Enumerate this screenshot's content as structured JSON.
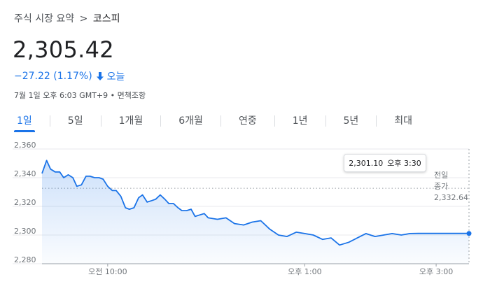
{
  "breadcrumb": {
    "root": "주식 시장 요약",
    "separator": ">",
    "current": "코스피"
  },
  "quote": {
    "price": "2,305.42",
    "change": "−27.22 (1.17%)",
    "period": "오늘",
    "meta": "7월 1일 오후 6:03 GMT+9 • 면책조항",
    "change_color": "#1a73e8"
  },
  "tabs": [
    "1일",
    "5일",
    "1개월",
    "6개월",
    "연중",
    "1년",
    "5년",
    "최대"
  ],
  "active_tab": "1일",
  "tooltip": {
    "value": "2,301.10",
    "time": "오후 3:30"
  },
  "prev_close": {
    "label_line1": "전일",
    "label_line2": "종가",
    "value": "2,332.64"
  },
  "chart_data": {
    "type": "area",
    "ylim": [
      2280,
      2360
    ],
    "yticks": [
      "2,360",
      "2,340",
      "2,320",
      "2,300",
      "2,280"
    ],
    "xticks": [
      "오전 10:00",
      "오후 1:00",
      "오후 3:00"
    ],
    "xtick_positions": [
      10.0,
      13.0,
      15.0
    ],
    "xlim": [
      9.0,
      15.5
    ],
    "reference_line": 2332.64,
    "line_color": "#1a73e8",
    "x": [
      9.0,
      9.07,
      9.13,
      9.2,
      9.27,
      9.33,
      9.4,
      9.47,
      9.53,
      9.6,
      9.67,
      9.73,
      9.8,
      9.87,
      9.93,
      10.0,
      10.07,
      10.13,
      10.2,
      10.27,
      10.33,
      10.4,
      10.47,
      10.53,
      10.6,
      10.67,
      10.73,
      10.8,
      10.87,
      10.93,
      11.0,
      11.07,
      11.13,
      11.2,
      11.27,
      11.33,
      11.4,
      11.47,
      11.53,
      11.67,
      11.8,
      11.93,
      12.07,
      12.2,
      12.33,
      12.47,
      12.6,
      12.73,
      12.87,
      13.0,
      13.13,
      13.27,
      13.4,
      13.53,
      13.67,
      13.8,
      13.93,
      14.07,
      14.2,
      14.33,
      14.47,
      14.6,
      14.73,
      14.87,
      15.0,
      15.13,
      15.27,
      15.4,
      15.5
    ],
    "values": [
      2343,
      2352,
      2346,
      2344,
      2344,
      2340,
      2342,
      2340,
      2334,
      2335,
      2341,
      2341,
      2340,
      2340,
      2339,
      2334,
      2331,
      2331,
      2327,
      2319,
      2318,
      2319,
      2326,
      2328,
      2323,
      2324,
      2325,
      2328,
      2325,
      2322,
      2322,
      2319,
      2317,
      2317,
      2318,
      2313,
      2314,
      2315,
      2312,
      2311,
      2312,
      2308,
      2307,
      2309,
      2310,
      2304,
      2300,
      2299,
      2302,
      2301,
      2300,
      2297,
      2298,
      2293,
      2295,
      2298,
      2301,
      2299,
      2300,
      2301,
      2300,
      2301,
      2301.1,
      2301.1,
      2301.1,
      2301.1,
      2301.1,
      2301.1,
      2301.1
    ]
  }
}
